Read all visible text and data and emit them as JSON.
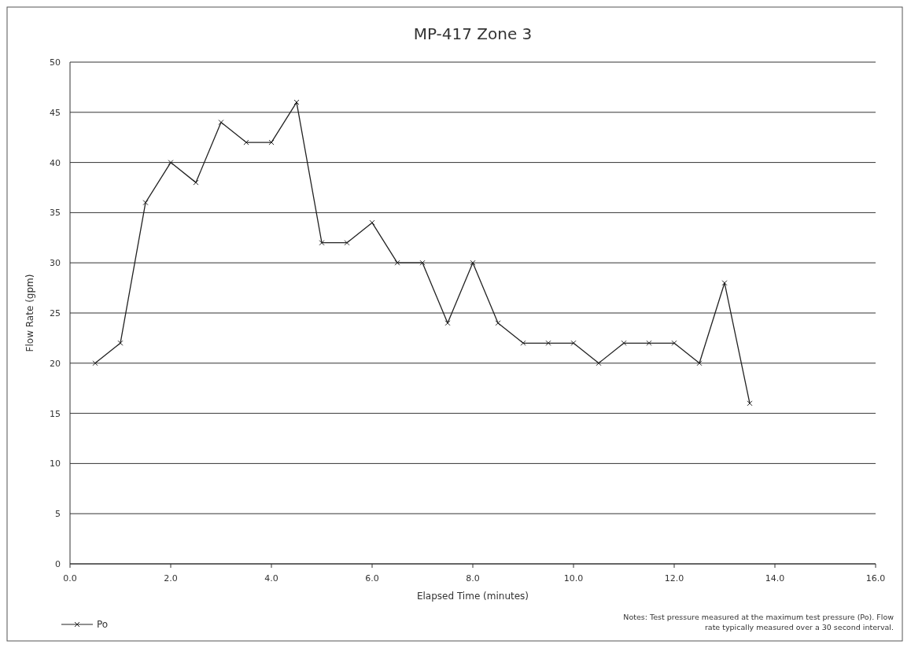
{
  "chart_data": {
    "type": "line",
    "title": "MP-417 Zone 3",
    "xlabel": "Elapsed Time (minutes)",
    "ylabel": "Flow Rate (gpm)",
    "x": [
      0.5,
      1.0,
      1.5,
      2.0,
      2.5,
      3.0,
      3.5,
      4.0,
      4.5,
      5.0,
      5.5,
      6.0,
      6.5,
      7.0,
      7.5,
      8.0,
      8.5,
      9.0,
      9.5,
      10.0,
      10.5,
      11.0,
      11.5,
      12.0,
      12.5,
      13.0,
      13.5
    ],
    "series": [
      {
        "name": "Po",
        "color": "#222222",
        "values": [
          20,
          22,
          36,
          40,
          38,
          44,
          42,
          42,
          46,
          32,
          32,
          34,
          30,
          30,
          24,
          30,
          24,
          22,
          22,
          22,
          20,
          22,
          22,
          22,
          20,
          28,
          16
        ]
      }
    ],
    "xlim": [
      0,
      16
    ],
    "xticks": [
      {
        "value": 0,
        "label": "0.0"
      },
      {
        "value": 2,
        "label": "2.0"
      },
      {
        "value": 4,
        "label": "4.0"
      },
      {
        "value": 6,
        "label": "6.0"
      },
      {
        "value": 8,
        "label": "8.0"
      },
      {
        "value": 10,
        "label": "10.0"
      },
      {
        "value": 12,
        "label": "12.0"
      },
      {
        "value": 14,
        "label": "14.0"
      },
      {
        "value": 16,
        "label": "16.0"
      }
    ],
    "ylim": [
      0,
      50
    ],
    "yticks": [
      0,
      5,
      10,
      15,
      20,
      25,
      30,
      35,
      40,
      45,
      50
    ],
    "grid": "y",
    "legend": "bottom left",
    "marker": "cross",
    "line_style": "solid",
    "annotations": [
      "Notes: Test pressure measured at the maximum test pressure (Po). Flow rate typically measured over a 30 second interval."
    ]
  }
}
